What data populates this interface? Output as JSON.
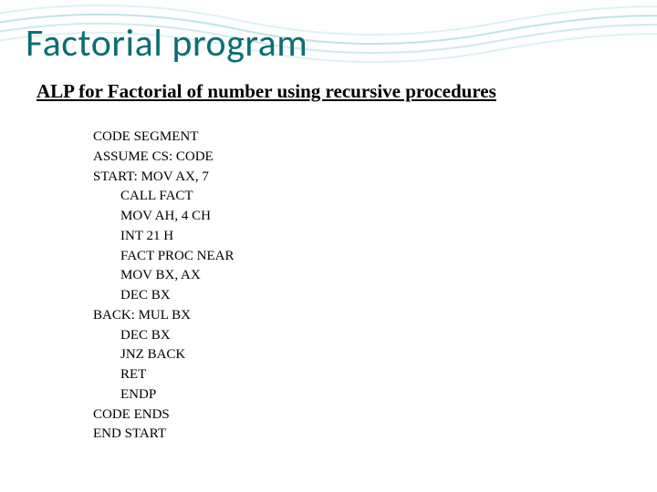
{
  "colors": {
    "title_color": "#0b6e74",
    "text_color": "#000000",
    "background": "#ffffff",
    "wave_stroke": "#bfe3e8",
    "wave_stroke_light": "#dff1f4"
  },
  "typography": {
    "title_fontsize": 42,
    "subtitle_fontsize": 21,
    "code_fontsize": 15,
    "title_font": "Calibri",
    "body_font": "Times New Roman"
  },
  "title": "Factorial program",
  "subtitle": "ALP for Factorial of number using recursive procedures",
  "code": {
    "lines": [
      {
        "text": "CODE SEGMENT",
        "indent": 0
      },
      {
        "text": "ASSUME CS: CODE",
        "indent": 0
      },
      {
        "text": "START: MOV AX, 7",
        "indent": 0
      },
      {
        "text": "CALL FACT",
        "indent": 1
      },
      {
        "text": "MOV AH, 4 CH",
        "indent": 1
      },
      {
        "text": "INT 21 H",
        "indent": 1
      },
      {
        "text": "FACT PROC NEAR",
        "indent": 1
      },
      {
        "text": "MOV BX, AX",
        "indent": 1
      },
      {
        "text": "DEC BX",
        "indent": 1
      },
      {
        "text": "BACK: MUL BX",
        "indent": 0
      },
      {
        "text": "DEC BX",
        "indent": 1
      },
      {
        "text": "JNZ BACK",
        "indent": 1
      },
      {
        "text": "RET",
        "indent": 1
      },
      {
        "text": "ENDP",
        "indent": 1
      },
      {
        "text": "CODE ENDS",
        "indent": 0
      },
      {
        "text": "END START",
        "indent": 0
      }
    ]
  }
}
